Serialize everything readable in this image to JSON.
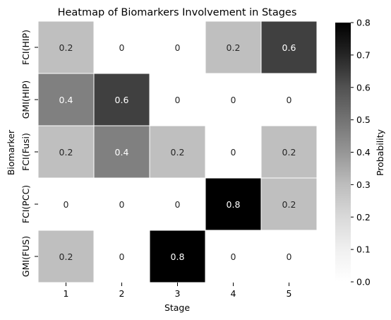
{
  "chart_data": {
    "type": "heatmap",
    "title": "Heatmap of Biomarkers Involvement in Stages",
    "xlabel": "Stage",
    "ylabel": "Biomarker",
    "x_categories": [
      "1",
      "2",
      "3",
      "4",
      "5"
    ],
    "y_categories": [
      "FCI(HIP)",
      "GMI(HIP)",
      "FCI(Fusi)",
      "FCI(PCC)",
      "GMI(FUS)"
    ],
    "values": [
      [
        0.2,
        0,
        0,
        0.2,
        0.6
      ],
      [
        0.4,
        0.6,
        0,
        0,
        0
      ],
      [
        0.2,
        0.4,
        0.2,
        0,
        0.2
      ],
      [
        0,
        0,
        0,
        0.8,
        0.2
      ],
      [
        0.2,
        0,
        0.8,
        0,
        0
      ]
    ],
    "value_labels": [
      [
        "0.2",
        "0",
        "0",
        "0.2",
        "0.6"
      ],
      [
        "0.4",
        "0.6",
        "0",
        "0",
        "0"
      ],
      [
        "0.2",
        "0.4",
        "0.2",
        "0",
        "0.2"
      ],
      [
        "0",
        "0",
        "0",
        "0.8",
        "0.2"
      ],
      [
        "0.2",
        "0",
        "0.8",
        "0",
        "0"
      ]
    ],
    "colorbar": {
      "label": "Probability",
      "range": [
        0.0,
        0.8
      ],
      "ticks": [
        "0.0",
        "0.1",
        "0.2",
        "0.3",
        "0.4",
        "0.5",
        "0.6",
        "0.7",
        "0.8"
      ],
      "colormap": "Greys",
      "low_color": "#ffffff",
      "high_color": "#000000"
    },
    "cell_border_color": "#ffffff"
  }
}
